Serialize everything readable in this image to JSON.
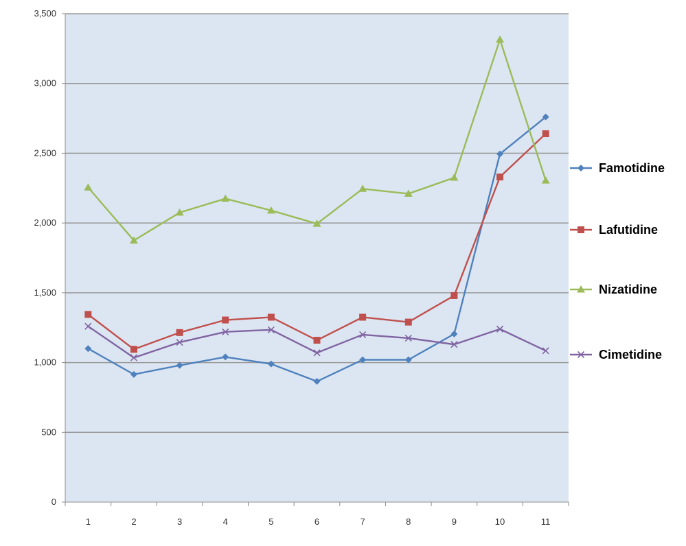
{
  "chart_data": {
    "type": "line",
    "title": "",
    "xlabel": "",
    "ylabel": "",
    "x": [
      1,
      2,
      3,
      4,
      5,
      6,
      7,
      8,
      9,
      10,
      11
    ],
    "ylim": [
      0,
      3500
    ],
    "yticks": [
      0,
      500,
      1000,
      1500,
      2000,
      2500,
      3000,
      3500
    ],
    "ytick_labels": [
      "0",
      "500",
      "1,000",
      "1,500",
      "2,000",
      "2,500",
      "3,000",
      "3,500"
    ],
    "grid": true,
    "plot_background": "#DCE6F2",
    "legend_position": "right",
    "series": [
      {
        "name": "Famotidine",
        "color": "#4F81BD",
        "marker": "diamond",
        "values": [
          1100,
          915,
          980,
          1040,
          990,
          865,
          1020,
          1020,
          1205,
          2495,
          2760
        ]
      },
      {
        "name": "Lafutidine",
        "color": "#C0504D",
        "marker": "square",
        "values": [
          1345,
          1095,
          1215,
          1305,
          1325,
          1160,
          1325,
          1290,
          1480,
          2330,
          2640
        ]
      },
      {
        "name": "Nizatidine",
        "color": "#9BBB59",
        "marker": "triangle",
        "values": [
          2255,
          1875,
          2075,
          2175,
          2090,
          1995,
          2245,
          2210,
          2325,
          3315,
          2305
        ]
      },
      {
        "name": "Cimetidine",
        "color": "#8064A2",
        "marker": "x",
        "values": [
          1260,
          1035,
          1145,
          1220,
          1235,
          1070,
          1200,
          1175,
          1130,
          1240,
          1085
        ]
      }
    ]
  }
}
